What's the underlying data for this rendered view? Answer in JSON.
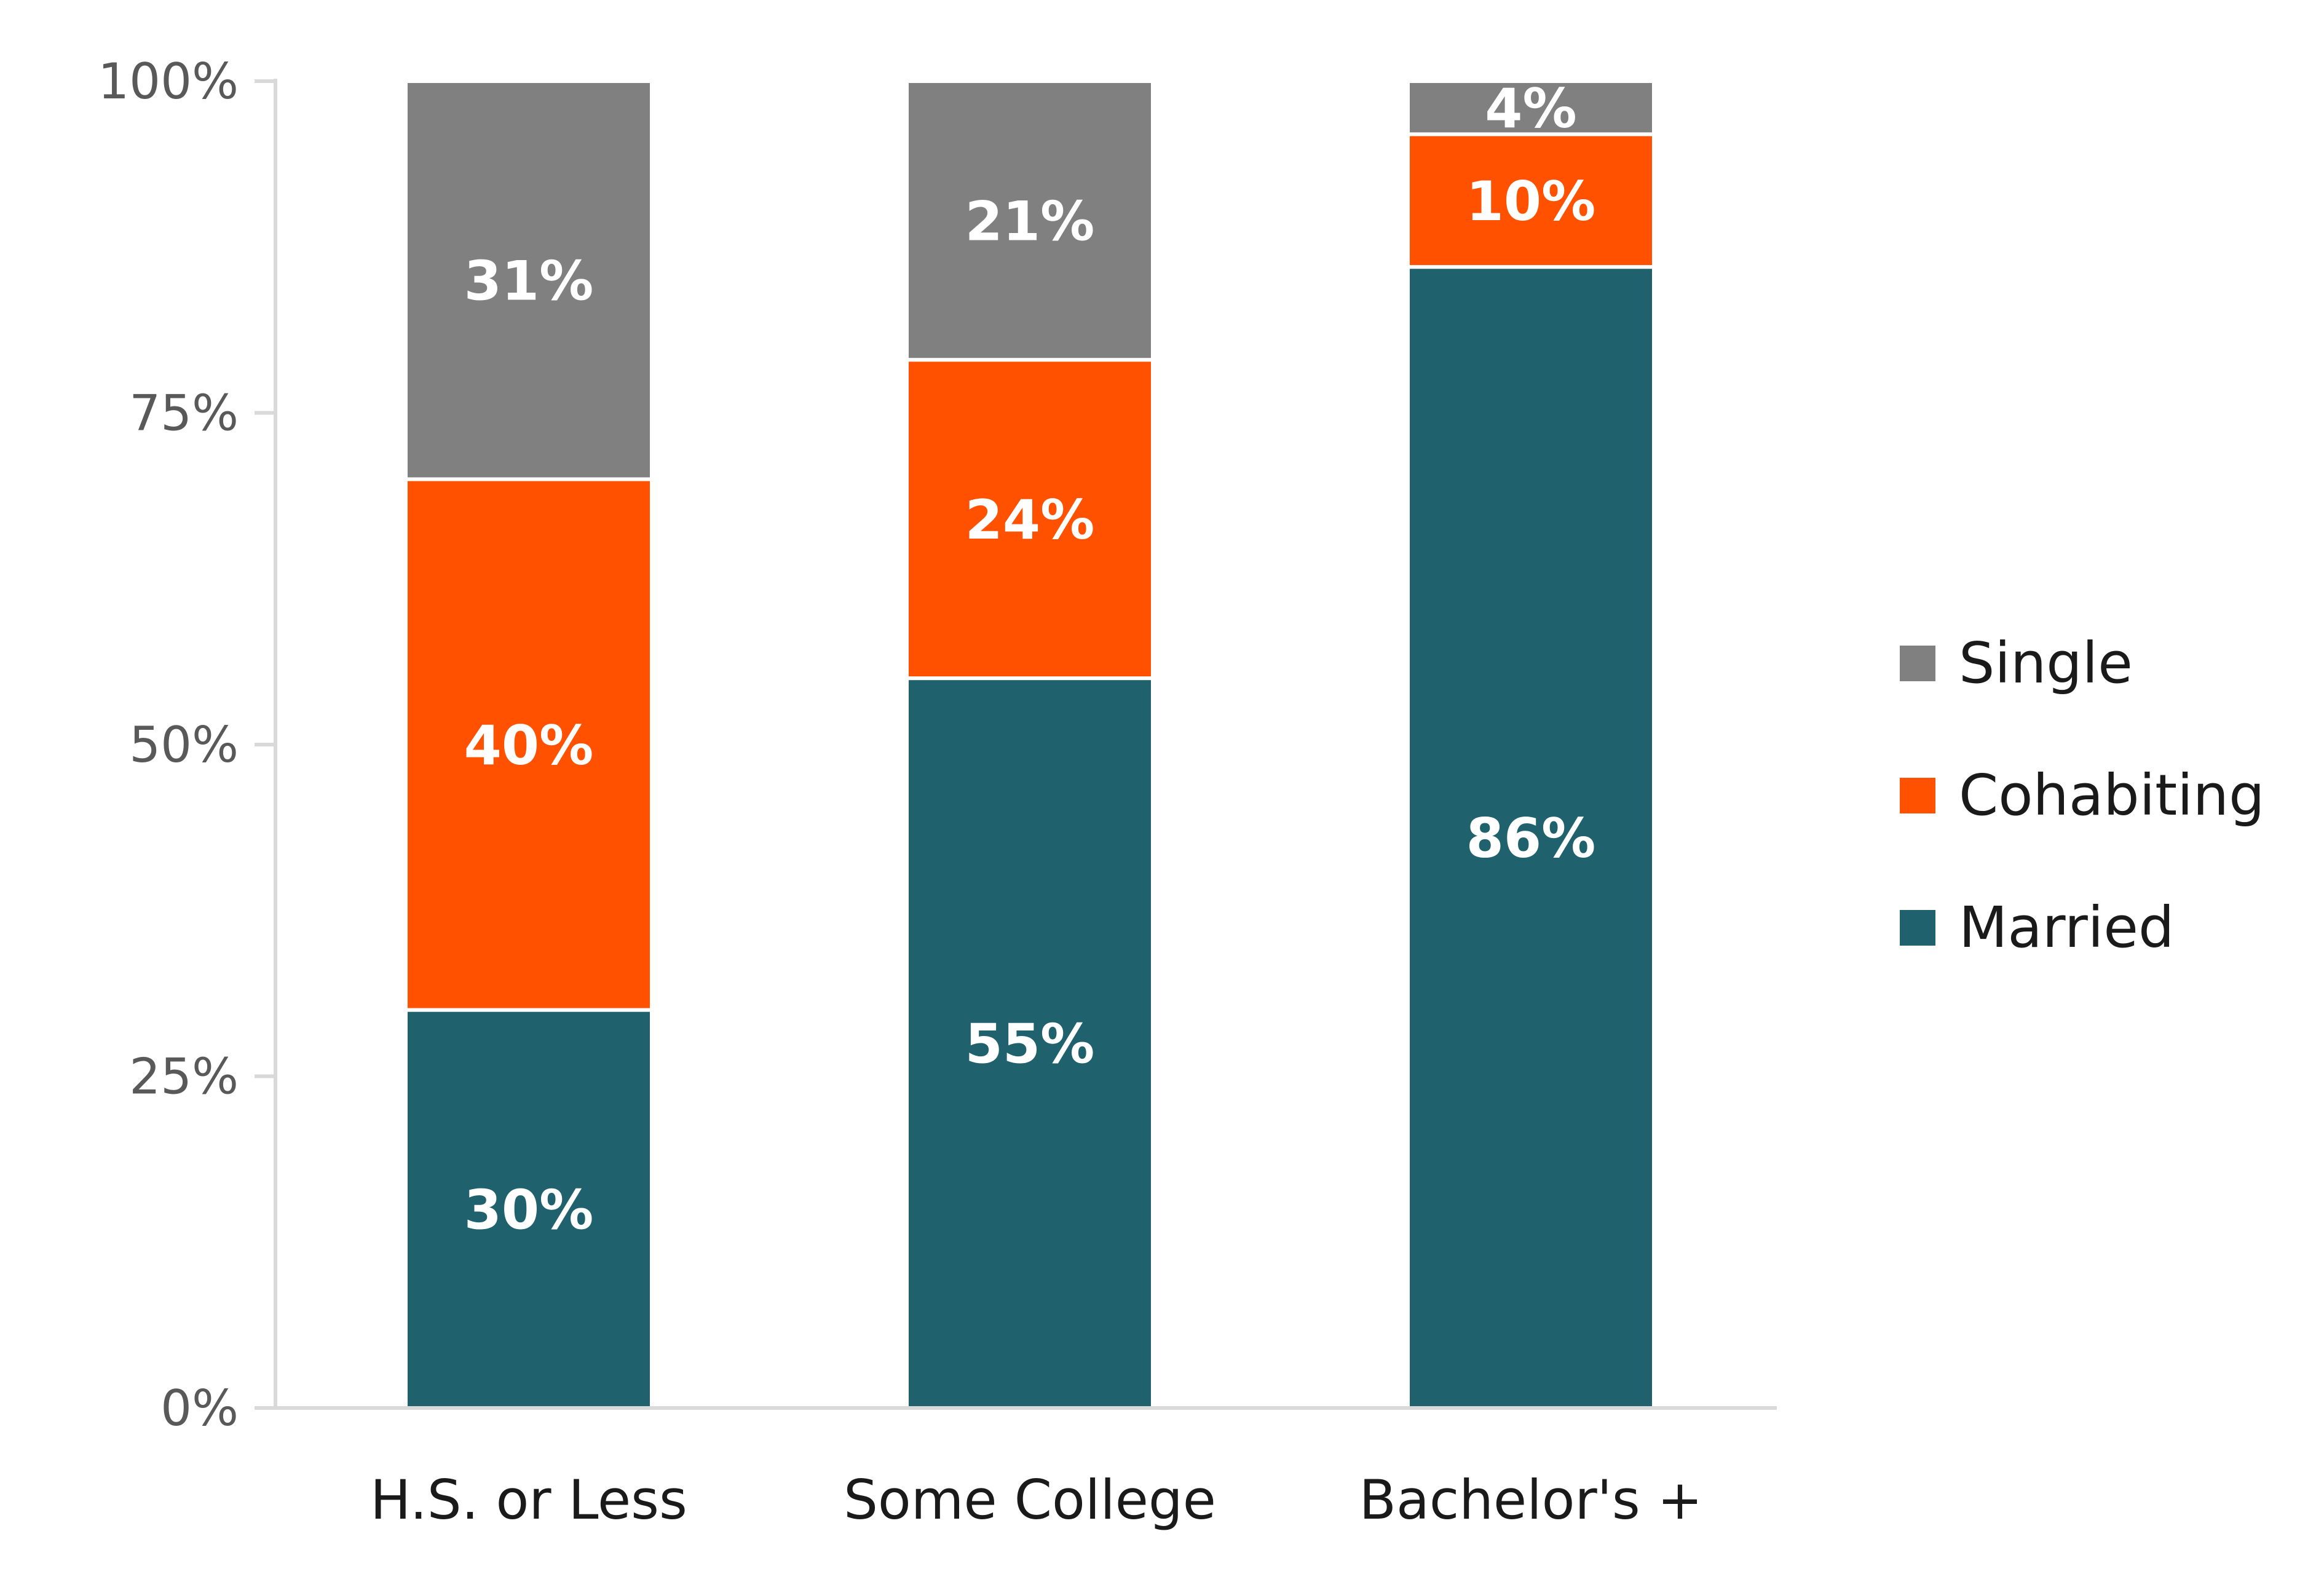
{
  "chart_data": {
    "type": "bar",
    "stacked": true,
    "categories": [
      "H.S. or Less",
      "Some College",
      "Bachelor's +"
    ],
    "series": [
      {
        "name": "Married",
        "color": "#1F616D",
        "values": [
          30,
          55,
          86
        ],
        "labels": [
          "30%",
          "55%",
          "86%"
        ]
      },
      {
        "name": "Cohabiting",
        "color": "#FF5100",
        "values": [
          40,
          24,
          10
        ],
        "labels": [
          "40%",
          "24%",
          "10%"
        ]
      },
      {
        "name": "Single",
        "color": "#808080",
        "values": [
          31,
          21,
          4
        ],
        "labels": [
          "31%",
          "21%",
          "4%"
        ]
      }
    ],
    "ylim": [
      0,
      100
    ],
    "yticks": [
      0,
      25,
      50,
      75,
      100
    ],
    "ytick_labels": [
      "0%",
      "25%",
      "50%",
      "75%",
      "100%"
    ],
    "legend": {
      "position": "right",
      "order": [
        "Single",
        "Cohabiting",
        "Married"
      ]
    },
    "grid": false
  }
}
